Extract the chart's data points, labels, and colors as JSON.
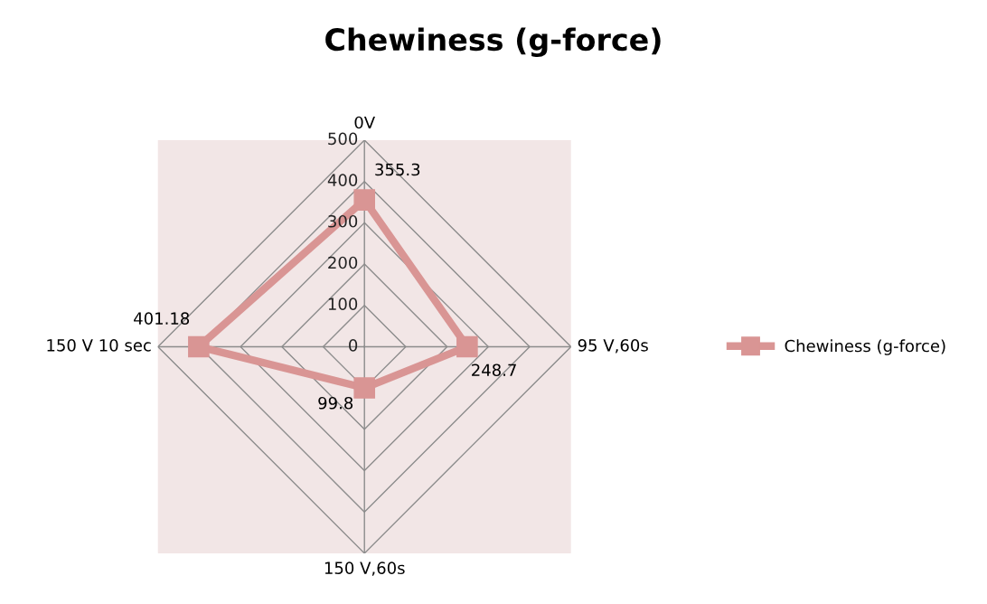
{
  "chart_data": {
    "type": "radar",
    "title": "Chewiness (g-force)",
    "categories": [
      "0V",
      "95 V,60s",
      "150 V,60s",
      "150 V 10 sec"
    ],
    "series": [
      {
        "name": "Chewiness (g-force)",
        "color": "#d99594",
        "values": [
          355.3,
          248.7,
          99.8,
          401.18
        ]
      }
    ],
    "ylim": [
      0,
      500
    ],
    "yticks": [
      0,
      100,
      200,
      300,
      400,
      500
    ],
    "grid": true,
    "marker": "square",
    "legend": "right",
    "data_labels": true
  }
}
